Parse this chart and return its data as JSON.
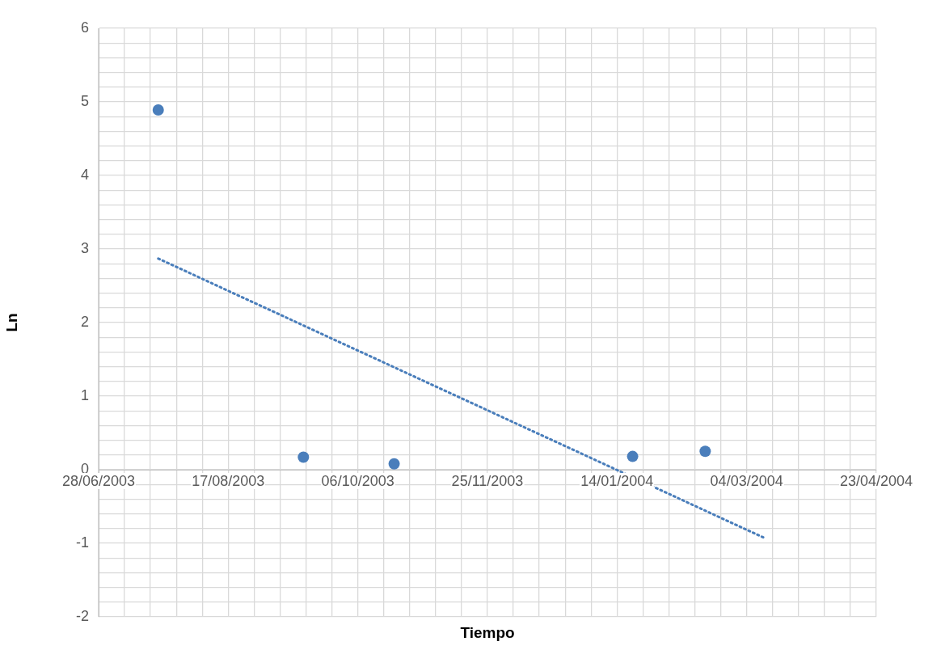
{
  "chart_data": {
    "type": "scatter",
    "xlabel": "Tiempo",
    "ylabel": "Ln",
    "x": [
      "2003-07-21",
      "2003-09-15",
      "2003-10-20",
      "2004-01-20",
      "2004-02-17"
    ],
    "series": [
      {
        "color": "#4a7ebb",
        "values": [
          4.89,
          0.17,
          0.08,
          0.18,
          0.25
        ],
        "marker": "circle"
      },
      {
        "type": "line",
        "color": "#4a7ebb",
        "x": [
          "2003-07-21",
          "2004-03-11"
        ],
        "values": [
          2.87,
          -0.93
        ],
        "marker": "none",
        "line_style": "dotted"
      }
    ],
    "xlim": [
      "2003-06-28",
      "2004-04-23"
    ],
    "xticks": [
      {
        "value": "2003-06-28",
        "label": "28/06/2003"
      },
      {
        "value": "2003-07-08",
        "label": null
      },
      {
        "value": "2003-07-18",
        "label": null
      },
      {
        "value": "2003-07-28",
        "label": null
      },
      {
        "value": "2003-08-07",
        "label": null
      },
      {
        "value": "2003-08-17",
        "label": "17/08/2003"
      },
      {
        "value": "2003-08-27",
        "label": null
      },
      {
        "value": "2003-09-06",
        "label": null
      },
      {
        "value": "2003-09-16",
        "label": null
      },
      {
        "value": "2003-09-26",
        "label": null
      },
      {
        "value": "2003-10-06",
        "label": "06/10/2003"
      },
      {
        "value": "2003-10-16",
        "label": null
      },
      {
        "value": "2003-10-26",
        "label": null
      },
      {
        "value": "2003-11-05",
        "label": null
      },
      {
        "value": "2003-11-15",
        "label": null
      },
      {
        "value": "2003-11-25",
        "label": "25/11/2003"
      },
      {
        "value": "2003-12-05",
        "label": null
      },
      {
        "value": "2003-12-15",
        "label": null
      },
      {
        "value": "2003-12-25",
        "label": null
      },
      {
        "value": "2004-01-04",
        "label": null
      },
      {
        "value": "2004-01-14",
        "label": "14/01/2004"
      },
      {
        "value": "2004-01-24",
        "label": null
      },
      {
        "value": "2004-02-03",
        "label": null
      },
      {
        "value": "2004-02-13",
        "label": null
      },
      {
        "value": "2004-02-23",
        "label": null
      },
      {
        "value": "2004-03-04",
        "label": "04/03/2004"
      },
      {
        "value": "2004-03-14",
        "label": null
      },
      {
        "value": "2004-03-24",
        "label": null
      },
      {
        "value": "2004-04-03",
        "label": null
      },
      {
        "value": "2004-04-13",
        "label": null
      },
      {
        "value": "2004-04-23",
        "label": "23/04/2004"
      }
    ],
    "ylim": [
      -2,
      6
    ],
    "yticks": [
      -2,
      {
        "value": -1.8,
        "label": null
      },
      {
        "value": -1.6,
        "label": null
      },
      {
        "value": -1.4,
        "label": null
      },
      {
        "value": -1.2,
        "label": null
      },
      -1,
      {
        "value": -0.8,
        "label": null
      },
      {
        "value": -0.6,
        "label": null
      },
      {
        "value": -0.4,
        "label": null
      },
      {
        "value": -0.2,
        "label": null
      },
      0,
      {
        "value": 0.2,
        "label": null
      },
      {
        "value": 0.4,
        "label": null
      },
      {
        "value": 0.6,
        "label": null
      },
      {
        "value": 0.8,
        "label": null
      },
      1,
      {
        "value": 1.2,
        "label": null
      },
      {
        "value": 1.4,
        "label": null
      },
      {
        "value": 1.6,
        "label": null
      },
      {
        "value": 1.8,
        "label": null
      },
      2,
      {
        "value": 2.2,
        "label": null
      },
      {
        "value": 2.4,
        "label": null
      },
      {
        "value": 2.6,
        "label": null
      },
      {
        "value": 2.8,
        "label": null
      },
      3,
      {
        "value": 3.2,
        "label": null
      },
      {
        "value": 3.4,
        "label": null
      },
      {
        "value": 3.6,
        "label": null
      },
      {
        "value": 3.8,
        "label": null
      },
      4,
      {
        "value": 4.2,
        "label": null
      },
      {
        "value": 4.4,
        "label": null
      },
      {
        "value": 4.6,
        "label": null
      },
      {
        "value": 4.8,
        "label": null
      },
      5,
      {
        "value": 5.2,
        "label": null
      },
      {
        "value": 5.4,
        "label": null
      },
      {
        "value": 5.6,
        "label": null
      },
      {
        "value": 5.8,
        "label": null
      },
      6
    ],
    "grid": true,
    "legend": false
  }
}
